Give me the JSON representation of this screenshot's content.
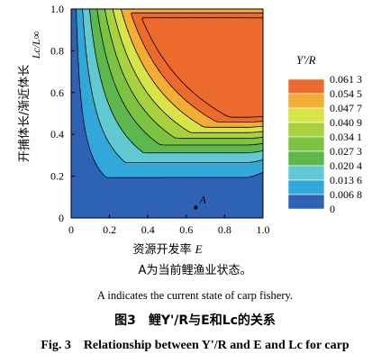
{
  "chart_data": {
    "type": "heatmap",
    "subtype": "filled-contour",
    "x": {
      "label_prefix": "资源开发率",
      "label_var": "E",
      "range": [
        0,
        1.0
      ],
      "ticks": [
        "0",
        "0.2",
        "0.4",
        "0.6",
        "0.8",
        "1.0"
      ]
    },
    "y": {
      "label_prefix": "开捕体长/渐近体长",
      "label_var": "Lc/L∞",
      "range": [
        0,
        1.0
      ],
      "ticks": [
        "0",
        "0.2",
        "0.4",
        "0.6",
        "0.8",
        "1.0"
      ]
    },
    "legend_title": "Y'/R",
    "legend_levels": [
      "0.061 3",
      "0.054 5",
      "0.047 7",
      "0.040 9",
      "0.034 1",
      "0.027 3",
      "0.020 4",
      "0.013 6",
      "0.006 8",
      "0"
    ],
    "level_values": [
      0,
      0.0068,
      0.0136,
      0.0204,
      0.0273,
      0.0341,
      0.0409,
      0.0477,
      0.0545,
      0.0613
    ],
    "colors": [
      "#2e62b4",
      "#31a8d9",
      "#60c9d2",
      "#5cb84c",
      "#7cc342",
      "#a7d23e",
      "#d6e447",
      "#f4ad33",
      "#ec6a2d"
    ],
    "point": {
      "label": "A",
      "E": 0.65,
      "Lc_Linf": 0.05
    }
  },
  "caption": {
    "note_cn": "A为当前鲤渔业状态。",
    "note_en": "A indicates the current state of carp fishery.",
    "title_cn": "图3　鲤Y'/R与E和Lc的关系",
    "title_en": "Fig. 3　Relationship between Y'/R and E and Lc for carp"
  }
}
